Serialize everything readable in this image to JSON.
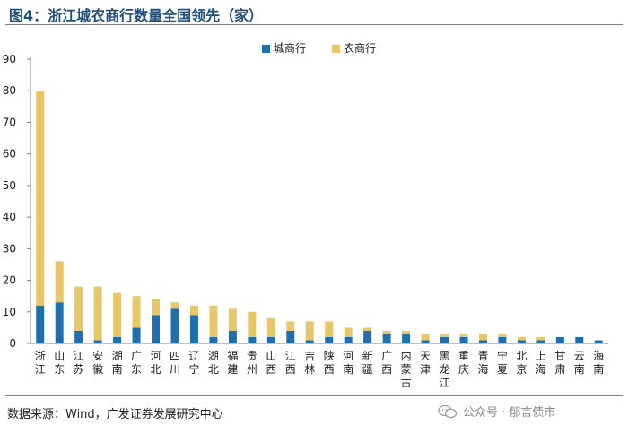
{
  "figure": {
    "title": "图4：浙江城农商行数量全国领先（家）",
    "source": "数据来源：Wind，广发证券发展研究中心",
    "watermark": "公众号 · 郁言债市",
    "watermark_icon": "wechat-icon"
  },
  "colors": {
    "title": "#1f4e79",
    "city_bank": "#1f6fad",
    "rural_bank": "#e6c76a"
  },
  "chart_data": {
    "type": "bar",
    "stacked": true,
    "title": "",
    "xlabel": "",
    "ylabel": "",
    "ylim": [
      0,
      90
    ],
    "yticks": [
      0,
      10,
      20,
      30,
      40,
      50,
      60,
      70,
      80,
      90
    ],
    "grid": false,
    "legend_position": "top-right",
    "categories": [
      "浙江",
      "山东",
      "江苏",
      "安徽",
      "湖南",
      "广东",
      "河北",
      "四川",
      "辽宁",
      "湖北",
      "福建",
      "贵州",
      "山西",
      "江西",
      "吉林",
      "陕西",
      "河南",
      "新疆",
      "广西",
      "内蒙古",
      "天津",
      "黑龙江",
      "重庆",
      "青海",
      "宁夏",
      "北京",
      "上海",
      "甘肃",
      "云南",
      "海南"
    ],
    "series": [
      {
        "name": "城商行",
        "color": "#1f6fad",
        "values": [
          12,
          13,
          4,
          1,
          2,
          5,
          9,
          11,
          9,
          2,
          4,
          2,
          2,
          4,
          1,
          2,
          2,
          4,
          3,
          3,
          1,
          2,
          2,
          1,
          2,
          1,
          1,
          2,
          2,
          1
        ]
      },
      {
        "name": "农商行",
        "color": "#e6c76a",
        "values": [
          68,
          13,
          14,
          17,
          14,
          10,
          5,
          2,
          3,
          10,
          7,
          8,
          6,
          3,
          6,
          5,
          3,
          1,
          1,
          1,
          2,
          1,
          1,
          2,
          1,
          1,
          1,
          0,
          0,
          0
        ]
      }
    ]
  }
}
